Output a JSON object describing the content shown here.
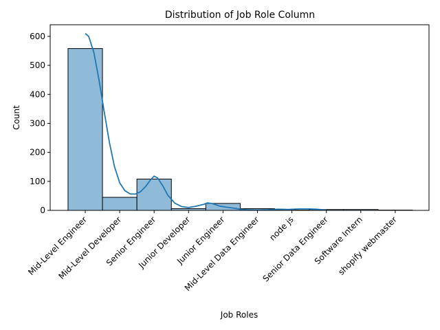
{
  "chart_data": {
    "type": "bar",
    "title": "Distribution of Job Role Column",
    "xlabel": "Job Roles",
    "ylabel": "Count",
    "categories": [
      "Mid-Level Engineer",
      "Mid-Level Developer",
      "Senior Engineer",
      "Junior Developer",
      "Junior Engineer",
      "Mid-Level Data Engineer",
      "node js",
      "Senior Data Engineer",
      "Software Intern",
      "shopify webmaster"
    ],
    "values": [
      558,
      45,
      108,
      6,
      24,
      6,
      1,
      3,
      3,
      1
    ],
    "yticks": [
      0,
      100,
      200,
      300,
      400,
      500,
      600
    ],
    "ylim": [
      0,
      640
    ],
    "bar_color": "#8fbbd9",
    "kde_color": "#1f77b4",
    "kde": [
      [
        0.0,
        610
      ],
      [
        0.1,
        600
      ],
      [
        0.25,
        545
      ],
      [
        0.4,
        450
      ],
      [
        0.55,
        340
      ],
      [
        0.7,
        235
      ],
      [
        0.85,
        150
      ],
      [
        1.0,
        95
      ],
      [
        1.15,
        68
      ],
      [
        1.3,
        57
      ],
      [
        1.45,
        56
      ],
      [
        1.6,
        64
      ],
      [
        1.75,
        82
      ],
      [
        1.9,
        106
      ],
      [
        2.0,
        118
      ],
      [
        2.1,
        112
      ],
      [
        2.25,
        85
      ],
      [
        2.4,
        52
      ],
      [
        2.6,
        25
      ],
      [
        2.8,
        13
      ],
      [
        3.0,
        10
      ],
      [
        3.2,
        14
      ],
      [
        3.45,
        21
      ],
      [
        3.55,
        26
      ],
      [
        3.7,
        23
      ],
      [
        3.9,
        15
      ],
      [
        4.1,
        11
      ],
      [
        4.3,
        8
      ],
      [
        4.5,
        4
      ],
      [
        4.7,
        2
      ],
      [
        5.0,
        1
      ],
      [
        5.3,
        2
      ],
      [
        5.6,
        4
      ],
      [
        5.9,
        3
      ],
      [
        6.2,
        5
      ],
      [
        6.5,
        5
      ],
      [
        6.7,
        4
      ],
      [
        6.9,
        2
      ],
      [
        7.0,
        1
      ]
    ]
  }
}
